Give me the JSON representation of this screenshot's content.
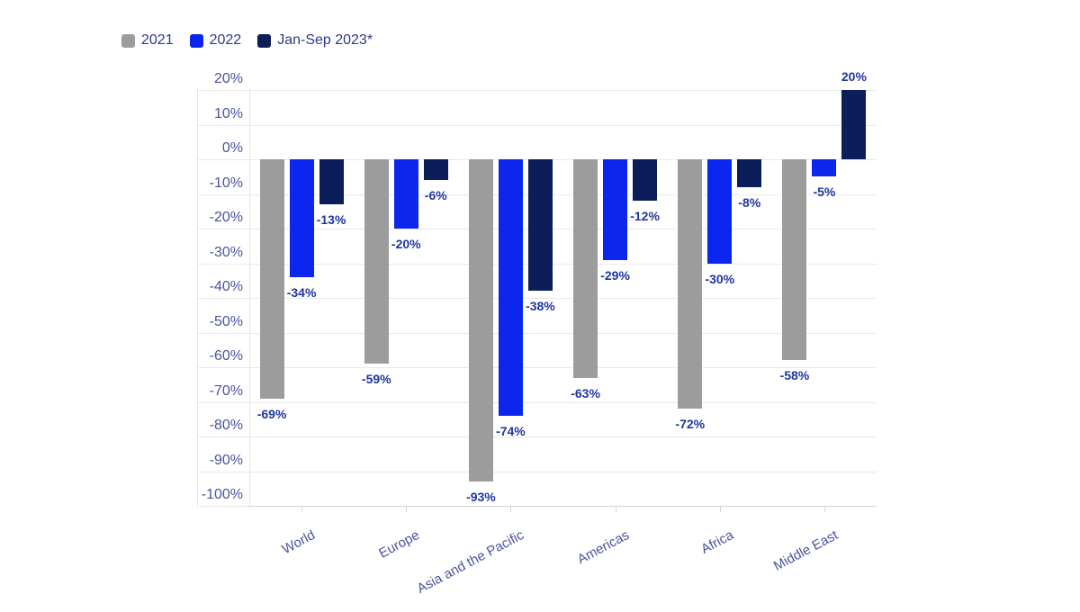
{
  "chart_data": {
    "type": "bar",
    "title": "",
    "categories": [
      "World",
      "Europe",
      "Asia and the Pacific",
      "Americas",
      "Africa",
      "Middle East"
    ],
    "series": [
      {
        "name": "2021",
        "color": "#9c9c9c",
        "values": [
          -69,
          -59,
          -93,
          -63,
          -72,
          -58
        ]
      },
      {
        "name": "2022",
        "color": "#0c26ee",
        "values": [
          -34,
          -20,
          -74,
          -29,
          -30,
          -5
        ]
      },
      {
        "name": "Jan-Sep 2023*",
        "color": "#0b1e59",
        "values": [
          -13,
          -6,
          -38,
          -12,
          -8,
          20
        ]
      }
    ],
    "y_axis": {
      "ticks": [
        20,
        10,
        0,
        -10,
        -20,
        -30,
        -40,
        -50,
        -60,
        -70,
        -80,
        -90,
        -100
      ],
      "tick_suffix": "%",
      "ylim": [
        -100,
        20
      ]
    },
    "data_label_suffix": "%",
    "grid": true,
    "legend_position": "top-left"
  },
  "colors": {
    "background": "#ffffff",
    "gridline": "#e9e9e9",
    "axis_line": "#d4d4d4",
    "y_tick_label": "#4a539f",
    "category_label": "#4a539f",
    "data_label": "#1f35a3",
    "legend_text": "#2c3a8c"
  }
}
